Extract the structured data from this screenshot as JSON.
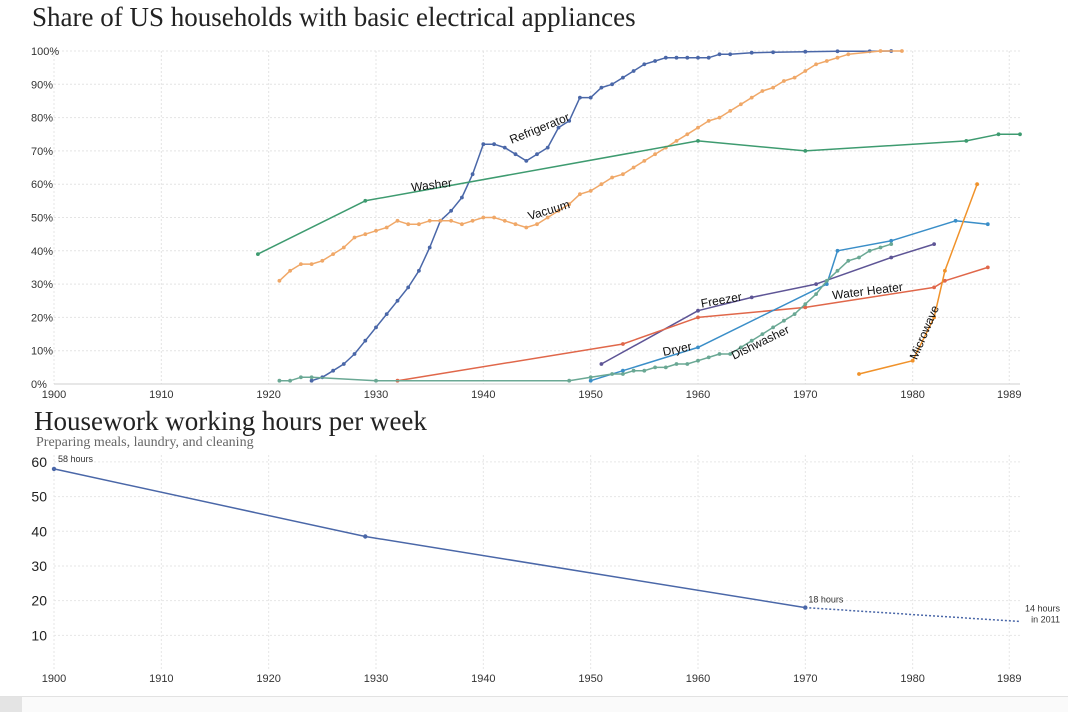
{
  "chart_data": [
    {
      "type": "line",
      "title": "Share of US households with basic electrical appliances",
      "xlim": [
        1900,
        1990
      ],
      "ylim": [
        0,
        100
      ],
      "x_ticks": [
        1900,
        1910,
        1920,
        1930,
        1940,
        1950,
        1960,
        1970,
        1980,
        1989
      ],
      "y_ticks": [
        "0%",
        "10%",
        "20%",
        "30%",
        "40%",
        "50%",
        "60%",
        "70%",
        "80%",
        "90%",
        "100%"
      ],
      "grid": true,
      "series": [
        {
          "name": "Refrigerator",
          "color": "#4a67a8",
          "markers": true,
          "points": [
            [
              1924,
              1
            ],
            [
              1925,
              2
            ],
            [
              1926,
              4
            ],
            [
              1927,
              6
            ],
            [
              1928,
              9
            ],
            [
              1929,
              13
            ],
            [
              1930,
              17
            ],
            [
              1931,
              21
            ],
            [
              1932,
              25
            ],
            [
              1933,
              29
            ],
            [
              1934,
              34
            ],
            [
              1935,
              41
            ],
            [
              1936,
              49
            ],
            [
              1937,
              52
            ],
            [
              1938,
              56
            ],
            [
              1939,
              63
            ],
            [
              1940,
              72
            ],
            [
              1941,
              72
            ],
            [
              1942,
              71
            ],
            [
              1943,
              69
            ],
            [
              1944,
              67
            ],
            [
              1945,
              69
            ],
            [
              1946,
              71
            ],
            [
              1947,
              77
            ],
            [
              1948,
              79
            ],
            [
              1949,
              86
            ],
            [
              1950,
              86
            ],
            [
              1951,
              89
            ],
            [
              1952,
              90
            ],
            [
              1953,
              92
            ],
            [
              1954,
              94
            ],
            [
              1955,
              96
            ],
            [
              1956,
              97
            ],
            [
              1957,
              98
            ],
            [
              1958,
              98
            ],
            [
              1959,
              98
            ],
            [
              1960,
              98
            ],
            [
              1961,
              98
            ],
            [
              1962,
              99
            ],
            [
              1963,
              99
            ],
            [
              1965,
              99.5
            ],
            [
              1967,
              99.6
            ],
            [
              1970,
              99.8
            ],
            [
              1973,
              99.9
            ],
            [
              1976,
              99.9
            ],
            [
              1978,
              100
            ]
          ]
        },
        {
          "name": "Vacuum",
          "color": "#f0a868",
          "markers": true,
          "points": [
            [
              1921,
              31
            ],
            [
              1922,
              34
            ],
            [
              1923,
              36
            ],
            [
              1924,
              36
            ],
            [
              1925,
              37
            ],
            [
              1926,
              39
            ],
            [
              1927,
              41
            ],
            [
              1928,
              44
            ],
            [
              1929,
              45
            ],
            [
              1930,
              46
            ],
            [
              1931,
              47
            ],
            [
              1932,
              49
            ],
            [
              1933,
              48
            ],
            [
              1934,
              48
            ],
            [
              1935,
              49
            ],
            [
              1936,
              49
            ],
            [
              1937,
              49
            ],
            [
              1938,
              48
            ],
            [
              1939,
              49
            ],
            [
              1940,
              50
            ],
            [
              1941,
              50
            ],
            [
              1942,
              49
            ],
            [
              1943,
              48
            ],
            [
              1944,
              47
            ],
            [
              1945,
              48
            ],
            [
              1946,
              50
            ],
            [
              1947,
              52
            ],
            [
              1948,
              54
            ],
            [
              1949,
              57
            ],
            [
              1950,
              58
            ],
            [
              1951,
              60
            ],
            [
              1952,
              62
            ],
            [
              1953,
              63
            ],
            [
              1954,
              65
            ],
            [
              1955,
              67
            ],
            [
              1956,
              69
            ],
            [
              1957,
              71
            ],
            [
              1958,
              73
            ],
            [
              1959,
              75
            ],
            [
              1960,
              77
            ],
            [
              1961,
              79
            ],
            [
              1962,
              80
            ],
            [
              1963,
              82
            ],
            [
              1964,
              84
            ],
            [
              1965,
              86
            ],
            [
              1966,
              88
            ],
            [
              1967,
              89
            ],
            [
              1968,
              91
            ],
            [
              1969,
              92
            ],
            [
              1970,
              94
            ],
            [
              1971,
              96
            ],
            [
              1972,
              97
            ],
            [
              1973,
              98
            ],
            [
              1974,
              99
            ],
            [
              1977,
              100
            ],
            [
              1979,
              100
            ]
          ]
        },
        {
          "name": "Washer",
          "color": "#3e9b70",
          "markers": true,
          "points": [
            [
              1919,
              39
            ],
            [
              1929,
              55
            ],
            [
              1960,
              73
            ],
            [
              1970,
              70
            ],
            [
              1985,
              73
            ],
            [
              1988,
              75
            ],
            [
              1990,
              75
            ]
          ]
        },
        {
          "name": "Freezer",
          "color": "#5e5596",
          "markers": true,
          "points": [
            [
              1951,
              6
            ],
            [
              1960,
              22
            ],
            [
              1965,
              26
            ],
            [
              1971,
              30
            ],
            [
              1978,
              38
            ],
            [
              1982,
              42
            ]
          ]
        },
        {
          "name": "Water Heater",
          "color": "#e0674a",
          "markers": true,
          "points": [
            [
              1932,
              1
            ],
            [
              1953,
              12
            ],
            [
              1960,
              20
            ],
            [
              1970,
              23
            ],
            [
              1982,
              29
            ],
            [
              1983,
              31
            ],
            [
              1987,
              35
            ]
          ]
        },
        {
          "name": "Dryer",
          "color": "#3a8ec8",
          "markers": true,
          "points": [
            [
              1950,
              1
            ],
            [
              1953,
              4
            ],
            [
              1960,
              11
            ],
            [
              1972,
              30
            ],
            [
              1973,
              40
            ],
            [
              1978,
              43
            ],
            [
              1984,
              49
            ],
            [
              1987,
              48
            ]
          ]
        },
        {
          "name": "Dishwasher",
          "color": "#6aa894",
          "markers": true,
          "points": [
            [
              1921,
              1
            ],
            [
              1922,
              1
            ],
            [
              1923,
              2
            ],
            [
              1924,
              2
            ],
            [
              1930,
              1
            ],
            [
              1948,
              1
            ],
            [
              1950,
              2
            ],
            [
              1952,
              3
            ],
            [
              1953,
              3
            ],
            [
              1954,
              4
            ],
            [
              1955,
              4
            ],
            [
              1956,
              5
            ],
            [
              1957,
              5
            ],
            [
              1958,
              6
            ],
            [
              1959,
              6
            ],
            [
              1960,
              7
            ],
            [
              1961,
              8
            ],
            [
              1962,
              9
            ],
            [
              1963,
              9
            ],
            [
              1964,
              11
            ],
            [
              1965,
              13
            ],
            [
              1966,
              15
            ],
            [
              1967,
              17
            ],
            [
              1968,
              19
            ],
            [
              1969,
              21
            ],
            [
              1970,
              24
            ],
            [
              1971,
              27
            ],
            [
              1972,
              31
            ],
            [
              1973,
              34
            ],
            [
              1974,
              37
            ],
            [
              1975,
              38
            ],
            [
              1976,
              40
            ],
            [
              1977,
              41
            ],
            [
              1978,
              42
            ]
          ]
        },
        {
          "name": "Microwave",
          "color": "#f0922a",
          "markers": true,
          "points": [
            [
              1975,
              3
            ],
            [
              1980,
              7
            ],
            [
              1982,
              20
            ],
            [
              1983,
              34
            ],
            [
              1986,
              60
            ]
          ]
        }
      ]
    },
    {
      "type": "line",
      "title": "Housework working hours per week",
      "subtitle": "Preparing meals, laundry, and cleaning",
      "xlim": [
        1900,
        1990
      ],
      "ylim": [
        0,
        62
      ],
      "x_ticks": [
        1900,
        1910,
        1920,
        1930,
        1940,
        1950,
        1960,
        1970,
        1980,
        1989
      ],
      "y_ticks": [
        10,
        20,
        30,
        40,
        50,
        60
      ],
      "grid": true,
      "series": [
        {
          "color": "#4a67a8",
          "points": [
            [
              1900,
              58
            ],
            [
              1929,
              38.5
            ],
            [
              1970,
              18
            ]
          ]
        },
        {
          "color": "#4a67a8",
          "dashed": true,
          "points": [
            [
              1970,
              18
            ],
            [
              1990,
              14
            ]
          ]
        }
      ],
      "annotations": [
        {
          "x": 1900,
          "y": 58,
          "text": "58 hours"
        },
        {
          "x": 1970,
          "y": 18,
          "text": "18 hours"
        },
        {
          "x": 1990,
          "y": 14,
          "text": "14 hours",
          "text2": "in 2011"
        }
      ]
    }
  ]
}
